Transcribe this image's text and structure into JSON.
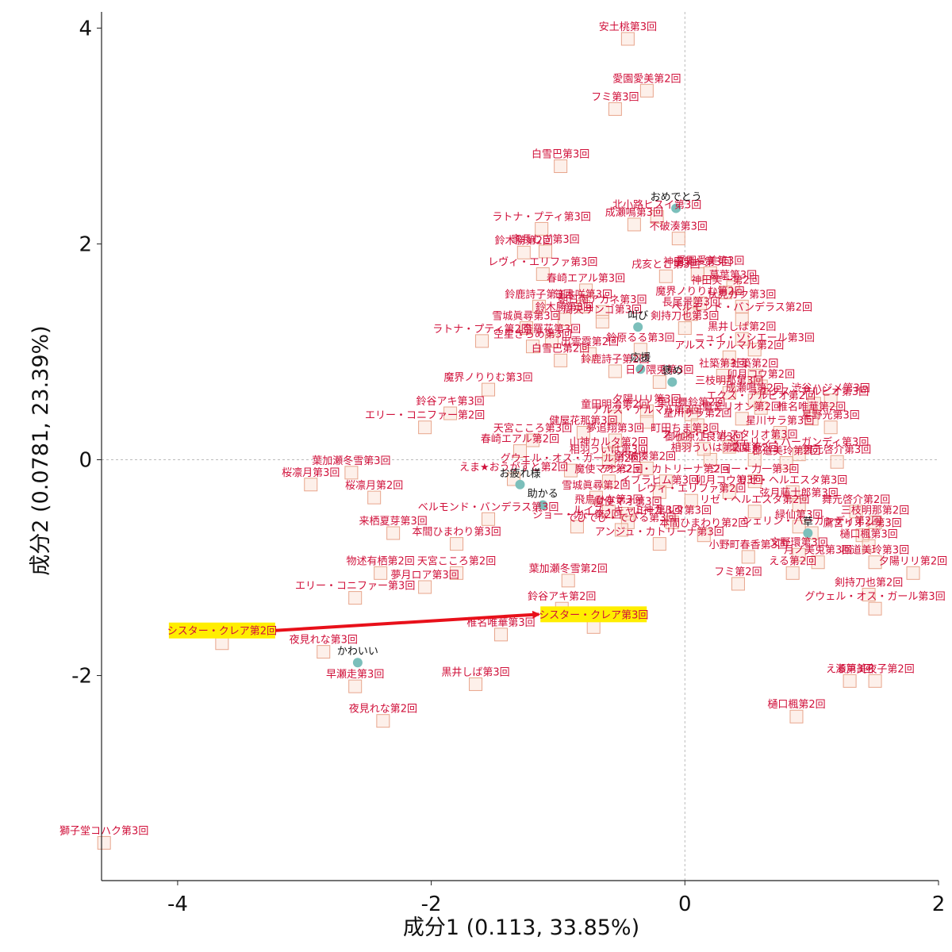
{
  "chart_data": {
    "type": "scatter",
    "xlabel": "成分1 (0.113, 33.85%)",
    "ylabel": "成分2 (0.0781, 23.39%)",
    "xlim": [
      -4.6,
      2.0
    ],
    "ylim": [
      -3.9,
      4.15
    ],
    "x_ticks": [
      "-4",
      "-2",
      "0",
      "2"
    ],
    "y_ticks": [
      "-2",
      "0",
      "2",
      "4"
    ],
    "x_tick_values": [
      -4,
      -2,
      0,
      2
    ],
    "y_tick_values": [
      -2,
      0,
      2,
      4
    ],
    "reference_lines": [
      0,
      0
    ],
    "colors": {
      "doc_text": "#d0103a",
      "doc_marker": "#fbe3d9",
      "word_marker": "#7bbfbb",
      "arrow": "#e8101a",
      "highlight": "#ffee00"
    },
    "series": [
      {
        "points": [
          {
            "label": "安土桃第3回",
            "x": -0.45,
            "y": 3.9
          },
          {
            "label": "フミ第3回",
            "x": -0.55,
            "y": 3.25
          },
          {
            "label": "愛園愛美第2回",
            "x": -0.3,
            "y": 3.42
          },
          {
            "label": "白雪巴第3回",
            "x": -0.98,
            "y": 2.72
          },
          {
            "label": "成瀬鳴第3回",
            "x": -0.4,
            "y": 2.18
          },
          {
            "label": "ラトナ・プティ第3回",
            "x": -1.13,
            "y": 2.14
          },
          {
            "label": "北小路ヒスイ第3回",
            "x": -0.22,
            "y": 2.25
          },
          {
            "label": "不破湊第3回",
            "x": -0.05,
            "y": 2.05
          },
          {
            "label": "鈴木勝第2回",
            "x": -1.27,
            "y": 1.92
          },
          {
            "label": "家長むぎ第3回",
            "x": -1.1,
            "y": 1.93
          },
          {
            "label": "愛園愛美第3回",
            "x": 0.2,
            "y": 1.73
          },
          {
            "label": "レヴィ・エリファ第3回",
            "x": -1.12,
            "y": 1.72
          },
          {
            "label": "春崎エアル第3回",
            "x": -0.78,
            "y": 1.57
          },
          {
            "label": "神田笑一第3回",
            "x": 0.1,
            "y": 1.72
          },
          {
            "label": "葛葉第3回",
            "x": 0.38,
            "y": 1.6
          },
          {
            "label": "神田笑一第2回",
            "x": 0.32,
            "y": 1.55
          },
          {
            "label": "魔界ノりりむ第2回",
            "x": 0.12,
            "y": 1.45
          },
          {
            "label": "伏見ガク第3回",
            "x": 0.45,
            "y": 1.42
          },
          {
            "label": "笹木咲第3回",
            "x": -0.8,
            "y": 1.42
          },
          {
            "label": "鈴鹿詩子第3回",
            "x": -1.15,
            "y": 1.42
          },
          {
            "label": "朝日南アカネ第3回",
            "x": -0.65,
            "y": 1.37
          },
          {
            "label": "長尾景第3回",
            "x": 0.05,
            "y": 1.35
          },
          {
            "label": "ベルモンド・バンデラス第2回",
            "x": 0.45,
            "y": 1.3
          },
          {
            "label": "鈴木勝第3回",
            "x": -0.95,
            "y": 1.3
          },
          {
            "label": "周央サンゴ第3回",
            "x": -0.65,
            "y": 1.28
          },
          {
            "label": "剣持刀也第3回",
            "x": 0.0,
            "y": 1.22
          },
          {
            "label": "雪城眞尋第3回",
            "x": -1.25,
            "y": 1.22
          },
          {
            "label": "ラトナ・プティ第2回",
            "x": -1.6,
            "y": 1.1
          },
          {
            "label": "奈羅花第3回",
            "x": -1.05,
            "y": 1.1
          },
          {
            "label": "黒井しば第2回",
            "x": 0.45,
            "y": 1.12
          },
          {
            "label": "ニュイ・ソシエール第3回",
            "x": 0.55,
            "y": 1.02
          },
          {
            "label": "空星きらめ第3回",
            "x": -1.2,
            "y": 1.05
          },
          {
            "label": "出雲霞第2回",
            "x": -0.75,
            "y": 0.98
          },
          {
            "label": "アルス・アルマル第2回",
            "x": 0.35,
            "y": 0.95
          },
          {
            "label": "白雪巴第2回",
            "x": -0.98,
            "y": 0.92
          },
          {
            "label": "鈴鹿詩子第2回",
            "x": -0.55,
            "y": 0.82
          },
          {
            "label": "日ノ隈兎第3回",
            "x": -0.2,
            "y": 0.72
          },
          {
            "label": "社築第3回",
            "x": 0.3,
            "y": 0.78
          },
          {
            "label": "社築第2回",
            "x": 0.55,
            "y": 0.78
          },
          {
            "label": "卯月コウ第2回",
            "x": 0.6,
            "y": 0.68
          },
          {
            "label": "魔界ノりりむ第3回",
            "x": -1.55,
            "y": 0.65
          },
          {
            "label": "三枝明那第3回",
            "x": 0.35,
            "y": 0.62
          },
          {
            "label": "渋谷ハジメ第3回",
            "x": 1.15,
            "y": 0.55
          },
          {
            "label": "成瀬鳴第2回",
            "x": 0.55,
            "y": 0.55
          },
          {
            "label": "エクス・アルビオ第3回",
            "x": 1.02,
            "y": 0.52
          },
          {
            "label": "エクス・アルビオ第2回",
            "x": 0.6,
            "y": 0.48
          },
          {
            "label": "鈴谷アキ第3回",
            "x": -1.85,
            "y": 0.43
          },
          {
            "label": "夕陽リリ第3回",
            "x": -0.3,
            "y": 0.45
          },
          {
            "label": "葉山舞鈴第2回",
            "x": 0.05,
            "y": 0.42
          },
          {
            "label": "童田明治第2回",
            "x": -0.55,
            "y": 0.4
          },
          {
            "label": "鷹宮リオン第2回",
            "x": 0.45,
            "y": 0.38
          },
          {
            "label": "アルス・アルマル第3回",
            "x": -0.3,
            "y": 0.35
          },
          {
            "label": "星川サラ第2回",
            "x": 0.1,
            "y": 0.32
          },
          {
            "label": "椎名唯華第2回",
            "x": 1.0,
            "y": 0.38
          },
          {
            "label": "エリー・コニファー第2回",
            "x": -2.05,
            "y": 0.3
          },
          {
            "label": "健屋花那第3回",
            "x": -0.8,
            "y": 0.25
          },
          {
            "label": "星川サラ第3回",
            "x": 0.75,
            "y": 0.25
          },
          {
            "label": "天宮こころ第3回",
            "x": -1.2,
            "y": 0.18
          },
          {
            "label": "夢追翔第3回",
            "x": -0.55,
            "y": 0.18
          },
          {
            "label": "町田ちま第3回",
            "x": 0.0,
            "y": 0.18
          },
          {
            "label": "フレン・E・ルスタリオ第3回",
            "x": 0.35,
            "y": 0.12
          },
          {
            "label": "シェリン・バーガンディ第3回",
            "x": 0.9,
            "y": 0.05
          },
          {
            "label": "山神カルタ第2回",
            "x": -0.6,
            "y": 0.05
          },
          {
            "label": "相羽ういは第2回",
            "x": 0.2,
            "y": 0.0
          },
          {
            "label": "葛葉第2回",
            "x": 0.55,
            "y": 0.0
          },
          {
            "label": "春崎エアル第2回",
            "x": -1.3,
            "y": 0.08
          },
          {
            "label": "相羽ういは第3回",
            "x": -0.6,
            "y": -0.02
          },
          {
            "label": "郡道美玲第2回",
            "x": 0.8,
            "y": -0.03
          },
          {
            "label": "舞元啓介第3回",
            "x": 1.2,
            "y": -0.02
          },
          {
            "label": "不破湊第2回",
            "x": -0.3,
            "y": -0.08
          },
          {
            "label": "グウェル・オス・ガール第2回",
            "x": -0.9,
            "y": -0.1
          },
          {
            "label": "葉加瀬冬雪第3回",
            "x": -2.63,
            "y": -0.12
          },
          {
            "label": "えま★おうがすと第2回",
            "x": -1.35,
            "y": -0.18
          },
          {
            "label": "桜凛月第3回",
            "x": -2.95,
            "y": -0.23
          },
          {
            "label": "桜凛月第2回",
            "x": -2.45,
            "y": -0.35
          },
          {
            "label": "魔使マオ第2回",
            "x": -0.6,
            "y": -0.2
          },
          {
            "label": "アンジュ・カトリーナ第2回",
            "x": -0.15,
            "y": -0.2
          },
          {
            "label": "ジョー・力一第3回",
            "x": 0.55,
            "y": -0.2
          },
          {
            "label": "イブラヒム第3回",
            "x": -0.2,
            "y": -0.3
          },
          {
            "label": "卯月コウ第3回",
            "x": 0.35,
            "y": -0.3
          },
          {
            "label": "リゼ・ヘルエスタ第3回",
            "x": 0.85,
            "y": -0.3
          },
          {
            "label": "レヴィ・エリファ第2回",
            "x": 0.05,
            "y": -0.38
          },
          {
            "label": "雪城眞尋第2回",
            "x": -0.7,
            "y": -0.35
          },
          {
            "label": "弦月藤士郎第3回",
            "x": 0.9,
            "y": -0.42
          },
          {
            "label": "飛鳥ひな第3回",
            "x": -0.6,
            "y": -0.48
          },
          {
            "label": "魔使マオ第3回",
            "x": -0.45,
            "y": -0.5
          },
          {
            "label": "リゼ・ヘルエスタ第2回",
            "x": 0.55,
            "y": -0.48
          },
          {
            "label": "舞元啓介第2回",
            "x": 1.35,
            "y": -0.48
          },
          {
            "label": "ルイス・キャミー第3回",
            "x": -0.45,
            "y": -0.58
          },
          {
            "label": "山神カルタ第3回",
            "x": -0.1,
            "y": -0.58
          },
          {
            "label": "ベルモンド・バンデラス第3回",
            "x": -1.55,
            "y": -0.55
          },
          {
            "label": "三枝明那第2回",
            "x": 1.5,
            "y": -0.58
          },
          {
            "label": "でびでび・でびる第3回",
            "x": -0.5,
            "y": -0.65
          },
          {
            "label": "来栖夏芽第3回",
            "x": -2.3,
            "y": -0.68
          },
          {
            "label": "本間ひまわり第2回",
            "x": 0.15,
            "y": -0.7
          },
          {
            "label": "シェリン・バーガンディ第2回",
            "x": 1.0,
            "y": -0.68
          },
          {
            "label": "鷹宮リオン第3回",
            "x": 1.4,
            "y": -0.7
          },
          {
            "label": "アンジュ・カトリーナ第3回",
            "x": -0.2,
            "y": -0.78
          },
          {
            "label": "本間ひまわり第3回",
            "x": -1.8,
            "y": -0.78
          },
          {
            "label": "樋口楓第3回",
            "x": 1.45,
            "y": -0.8
          },
          {
            "label": "小野町春香第3回",
            "x": 0.5,
            "y": -0.9
          },
          {
            "label": "文野環第3回",
            "x": 0.9,
            "y": -0.88
          },
          {
            "label": "月ノ美兎第3回",
            "x": 1.05,
            "y": -0.95
          },
          {
            "label": "郡道美玲第3回",
            "x": 1.5,
            "y": -0.95
          },
          {
            "label": "物述有栖第2回",
            "x": -2.4,
            "y": -1.05
          },
          {
            "label": "天宮こころ第2回",
            "x": -1.8,
            "y": -1.05
          },
          {
            "label": "葉加瀬冬雪第2回",
            "x": -0.92,
            "y": -1.12
          },
          {
            "label": "える第2回",
            "x": 0.85,
            "y": -1.05
          },
          {
            "label": "夕陽リリ第2回",
            "x": 1.8,
            "y": -1.05
          },
          {
            "label": "フミ第2回",
            "x": 0.42,
            "y": -1.15
          },
          {
            "label": "剣持刀也第2回",
            "x": 1.45,
            "y": -1.25
          },
          {
            "label": "エリー・コニファー第3回",
            "x": -2.6,
            "y": -1.28
          },
          {
            "label": "鈴谷アキ第2回",
            "x": -0.97,
            "y": -1.38
          },
          {
            "label": "グウェル・オス・ガール第3回",
            "x": 1.5,
            "y": -1.38
          },
          {
            "label": "椎名唯華第3回",
            "x": -1.45,
            "y": -1.62
          },
          {
            "label": "シスター・クレア第2回",
            "x": -3.65,
            "y": -1.7
          },
          {
            "label": "シスター・クレア第3回",
            "x": -0.72,
            "y": -1.55
          },
          {
            "label": "夜見れな第3回",
            "x": -2.85,
            "y": -1.78
          },
          {
            "label": "早瀬走第3回",
            "x": -2.6,
            "y": -2.1
          },
          {
            "label": "黒井しば第3回",
            "x": -1.65,
            "y": -2.08
          },
          {
            "label": "える第3回",
            "x": 1.3,
            "y": -2.05
          },
          {
            "label": "瀬戸美夜子第2回",
            "x": 1.5,
            "y": -2.05
          },
          {
            "label": "夜見れな第2回",
            "x": -2.38,
            "y": -2.42
          },
          {
            "label": "樋口楓第2回",
            "x": 0.88,
            "y": -2.38
          },
          {
            "label": "夢月ロア第3回",
            "x": -2.05,
            "y": -1.18
          },
          {
            "label": "緑仙第3回",
            "x": 0.9,
            "y": -0.62
          },
          {
            "label": "星野光第3回",
            "x": 1.15,
            "y": 0.3
          },
          {
            "label": "鈴原るる第3回",
            "x": -0.35,
            "y": 1.02
          },
          {
            "label": "ジョー・力一第2回",
            "x": -0.85,
            "y": -0.62
          },
          {
            "label": "御伽原江良第3回",
            "x": 0.15,
            "y": 0.1
          },
          {
            "label": "戌亥とこ第3回",
            "x": -0.15,
            "y": 1.7
          },
          {
            "label": "獅子堂コハク第3回",
            "x": -4.58,
            "y": -3.55
          }
        ]
      },
      {
        "points": [
          {
            "label": "おめでとう",
            "x": -0.07,
            "y": 2.33
          },
          {
            "label": "叫び",
            "x": -0.37,
            "y": 1.23
          },
          {
            "label": "応援",
            "x": -0.35,
            "y": 0.84
          },
          {
            "label": "褒め",
            "x": -0.1,
            "y": 0.72
          },
          {
            "label": "お疲れ様",
            "x": -1.3,
            "y": -0.23
          },
          {
            "label": "助かる",
            "x": -1.12,
            "y": -0.42
          },
          {
            "label": "草",
            "x": 0.97,
            "y": -0.68
          },
          {
            "label": "かわいい",
            "x": -2.58,
            "y": -1.88
          }
        ]
      }
    ],
    "highlight": {
      "from": "シスター・クレア第2回",
      "to": "シスター・クレア第3回"
    }
  }
}
